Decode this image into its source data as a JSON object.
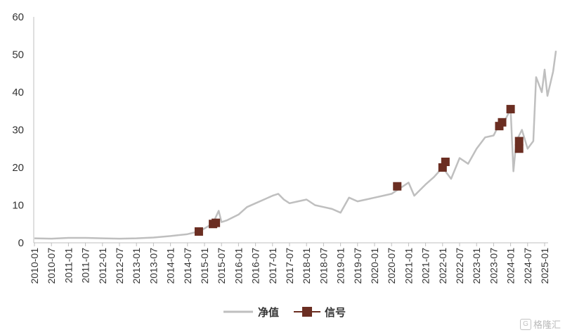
{
  "chart_data": {
    "type": "line",
    "title": "",
    "xlabel": "",
    "ylabel": "",
    "ylim": [
      0,
      60
    ],
    "yticks": [
      "0",
      "10",
      "20",
      "30",
      "40",
      "50",
      "60"
    ],
    "grid": false,
    "legend_position": "bottom-center",
    "x_tick_labels": [
      "2010-01",
      "2010-07",
      "2011-01",
      "2011-07",
      "2012-01",
      "2012-07",
      "2013-01",
      "2013-07",
      "2014-01",
      "2014-07",
      "2015-01",
      "2015-07",
      "2016-01",
      "2016-07",
      "2017-01",
      "2017-07",
      "2018-01",
      "2018-07",
      "2019-01",
      "2019-07",
      "2020-01",
      "2020-07",
      "2021-01",
      "2021-07",
      "2022-01",
      "2022-07",
      "2023-01",
      "2023-07",
      "2024-01",
      "2024-07",
      "2025-01"
    ],
    "series": [
      {
        "name": "净值",
        "kind": "line",
        "color": "#bfbfbf",
        "points": [
          [
            "2010-01",
            1.2
          ],
          [
            "2010-07",
            1.1
          ],
          [
            "2011-01",
            1.3
          ],
          [
            "2011-07",
            1.3
          ],
          [
            "2012-01",
            1.2
          ],
          [
            "2012-07",
            1.1
          ],
          [
            "2013-01",
            1.2
          ],
          [
            "2013-07",
            1.4
          ],
          [
            "2014-01",
            1.8
          ],
          [
            "2014-07",
            2.3
          ],
          [
            "2014-11",
            3.0
          ],
          [
            "2015-01",
            3.8
          ],
          [
            "2015-04",
            5.2
          ],
          [
            "2015-06",
            8.5
          ],
          [
            "2015-07",
            5.5
          ],
          [
            "2015-09",
            6.0
          ],
          [
            "2016-01",
            7.5
          ],
          [
            "2016-04",
            9.5
          ],
          [
            "2016-07",
            10.5
          ],
          [
            "2016-10",
            11.5
          ],
          [
            "2017-01",
            12.5
          ],
          [
            "2017-03",
            13.0
          ],
          [
            "2017-05",
            11.5
          ],
          [
            "2017-07",
            10.5
          ],
          [
            "2017-10",
            11.0
          ],
          [
            "2018-01",
            11.5
          ],
          [
            "2018-04",
            10.0
          ],
          [
            "2018-07",
            9.5
          ],
          [
            "2018-10",
            9.0
          ],
          [
            "2019-01",
            8.0
          ],
          [
            "2019-04",
            12.0
          ],
          [
            "2019-07",
            11.0
          ],
          [
            "2019-10",
            11.5
          ],
          [
            "2020-01",
            12.0
          ],
          [
            "2020-04",
            12.5
          ],
          [
            "2020-07",
            13.0
          ],
          [
            "2020-10",
            14.5
          ],
          [
            "2021-01",
            16.0
          ],
          [
            "2021-03",
            12.5
          ],
          [
            "2021-07",
            15.5
          ],
          [
            "2021-10",
            17.5
          ],
          [
            "2022-01",
            20.0
          ],
          [
            "2022-04",
            17.0
          ],
          [
            "2022-07",
            22.5
          ],
          [
            "2022-10",
            21.0
          ],
          [
            "2023-01",
            25.0
          ],
          [
            "2023-04",
            28.0
          ],
          [
            "2023-07",
            28.5
          ],
          [
            "2023-09",
            31.5
          ],
          [
            "2023-11",
            32.5
          ],
          [
            "2024-01",
            35.5
          ],
          [
            "2024-02",
            19.0
          ],
          [
            "2024-03",
            27.0
          ],
          [
            "2024-05",
            30.0
          ],
          [
            "2024-07",
            25.0
          ],
          [
            "2024-09",
            27.0
          ],
          [
            "2024-10",
            44.0
          ],
          [
            "2024-12",
            40.0
          ],
          [
            "2025-01",
            46.0
          ],
          [
            "2025-02",
            39.0
          ],
          [
            "2025-04",
            45.5
          ],
          [
            "2025-05",
            51.0
          ]
        ]
      },
      {
        "name": "信号",
        "kind": "marker",
        "color": "#6b2e22",
        "points": [
          [
            "2014-11",
            3.0
          ],
          [
            "2015-04",
            5.0
          ],
          [
            "2015-05",
            5.3
          ],
          [
            "2020-09",
            15.0
          ],
          [
            "2022-01",
            20.0
          ],
          [
            "2022-02",
            21.5
          ],
          [
            "2023-09",
            31.0
          ],
          [
            "2023-10",
            32.0
          ],
          [
            "2024-01",
            35.5
          ],
          [
            "2024-04",
            25.0
          ],
          [
            "2024-04",
            27.0
          ]
        ]
      }
    ]
  },
  "watermark": {
    "icon": "G",
    "text": "格隆汇"
  }
}
